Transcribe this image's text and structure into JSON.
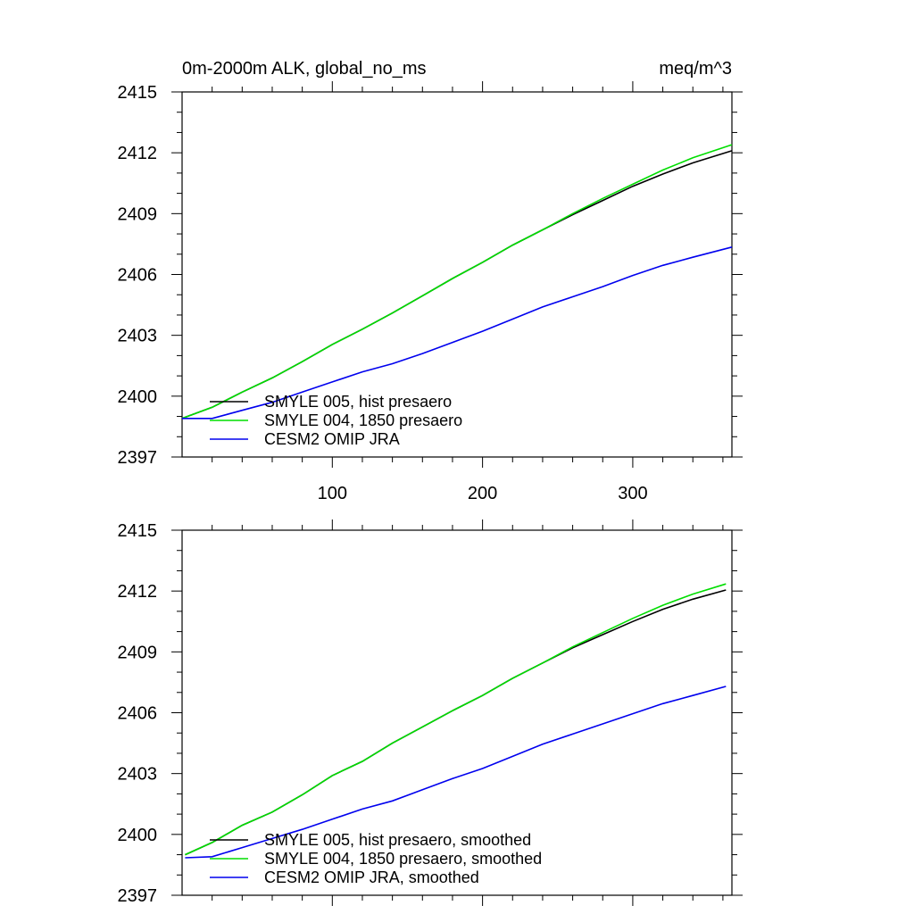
{
  "figure": {
    "title_left": "0m-2000m ALK, global_no_ms",
    "title_right": "meq/m^3"
  },
  "chart_data": [
    {
      "type": "line",
      "title": "0m-2000m ALK, global_no_ms",
      "units": "meq/m^3",
      "xlim": [
        0,
        366
      ],
      "ylim": [
        2397,
        2415
      ],
      "xticks": [
        100,
        200,
        300
      ],
      "yticks": [
        2397,
        2400,
        2403,
        2406,
        2409,
        2412,
        2415
      ],
      "x": [
        0,
        20,
        40,
        60,
        80,
        100,
        120,
        140,
        160,
        180,
        200,
        220,
        240,
        260,
        280,
        300,
        320,
        340,
        366
      ],
      "series": [
        {
          "name": "SMYLE 005, hist presaero",
          "color": "#000000",
          "values": [
            2398.9,
            2399.45,
            2400.2,
            2400.9,
            2401.7,
            2402.55,
            2403.3,
            2404.1,
            2404.95,
            2405.8,
            2406.6,
            2407.45,
            2408.2,
            2408.95,
            2409.65,
            2410.35,
            2410.95,
            2411.5,
            2412.1
          ]
        },
        {
          "name": "SMYLE 004, 1850 presaero",
          "color": "#00dd00",
          "values": [
            2398.9,
            2399.45,
            2400.2,
            2400.9,
            2401.7,
            2402.55,
            2403.3,
            2404.1,
            2404.95,
            2405.8,
            2406.6,
            2407.45,
            2408.2,
            2409.0,
            2409.75,
            2410.45,
            2411.15,
            2411.75,
            2412.4
          ]
        },
        {
          "name": "CESM2 OMIP JRA",
          "color": "#0000ee",
          "values": [
            2398.9,
            2398.9,
            2399.3,
            2399.7,
            2400.2,
            2400.7,
            2401.2,
            2401.6,
            2402.1,
            2402.65,
            2403.2,
            2403.8,
            2404.4,
            2404.9,
            2405.4,
            2405.95,
            2406.45,
            2406.85,
            2407.35
          ]
        }
      ]
    },
    {
      "type": "line",
      "title": "",
      "xlim": [
        0,
        366
      ],
      "ylim": [
        2397,
        2415
      ],
      "xticks": [
        100,
        200,
        300
      ],
      "yticks": [
        2397,
        2400,
        2403,
        2406,
        2409,
        2412,
        2415
      ],
      "x": [
        2,
        20,
        40,
        60,
        80,
        100,
        120,
        140,
        160,
        180,
        200,
        220,
        240,
        260,
        280,
        300,
        320,
        340,
        362
      ],
      "series": [
        {
          "name": "SMYLE 005, hist presaero, smoothed",
          "color": "#000000",
          "values": [
            2399.0,
            2399.6,
            2400.45,
            2401.1,
            2401.95,
            2402.9,
            2403.6,
            2404.5,
            2405.3,
            2406.1,
            2406.85,
            2407.7,
            2408.45,
            2409.2,
            2409.85,
            2410.5,
            2411.1,
            2411.6,
            2412.05
          ]
        },
        {
          "name": "SMYLE 004, 1850 presaero, smoothed",
          "color": "#00dd00",
          "values": [
            2399.0,
            2399.6,
            2400.45,
            2401.1,
            2401.95,
            2402.9,
            2403.6,
            2404.5,
            2405.3,
            2406.1,
            2406.85,
            2407.7,
            2408.45,
            2409.25,
            2409.95,
            2410.65,
            2411.3,
            2411.85,
            2412.35
          ]
        },
        {
          "name": "CESM2 OMIP JRA, smoothed",
          "color": "#0000ee",
          "values": [
            2398.85,
            2398.9,
            2399.35,
            2399.8,
            2400.25,
            2400.75,
            2401.25,
            2401.65,
            2402.2,
            2402.75,
            2403.25,
            2403.85,
            2404.45,
            2404.95,
            2405.45,
            2405.95,
            2406.45,
            2406.85,
            2407.3
          ]
        }
      ]
    }
  ]
}
